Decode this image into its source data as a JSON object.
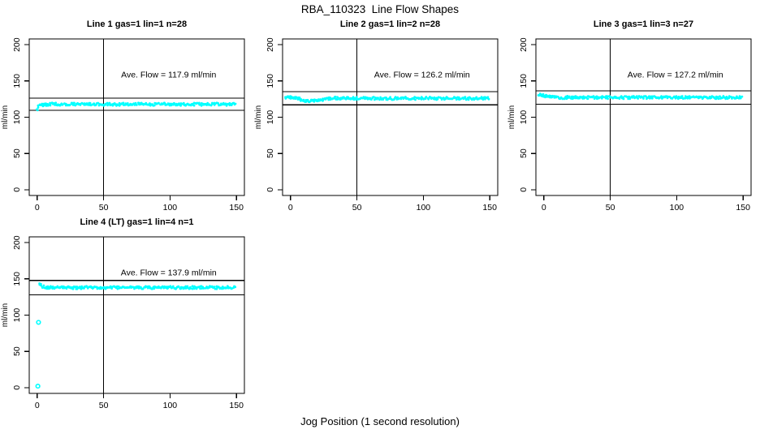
{
  "page": {
    "title": "RBA_110323  Line Flow Shapes",
    "xlabel_outer": "Jog Position (1 second resolution)",
    "background": "#ffffff"
  },
  "colors": {
    "points": "#00FFFF",
    "axis": "#000000",
    "text": "#000000"
  },
  "chart_data": [
    {
      "type": "scatter",
      "title": "Line 1 gas=1 lin=1 n=28",
      "ylabel": "ml/min",
      "xlim": [
        0,
        150
      ],
      "ylim": [
        0,
        200
      ],
      "xticks": [
        0,
        50,
        100,
        150
      ],
      "yticks": [
        0,
        50,
        100,
        150,
        200
      ],
      "vline_x": 50,
      "hlines": [
        109.4,
        126.4
      ],
      "ave_flow": 117.9,
      "annotation": {
        "text": "Ave. Flow =  117.9  ml/min",
        "x": 99,
        "y": 155
      },
      "band": [
        [
          0,
          111.5
        ],
        [
          1,
          114.5
        ],
        [
          2,
          116
        ],
        [
          3,
          116.8
        ],
        [
          5,
          117.3
        ],
        [
          8,
          117.8
        ],
        [
          11,
          118.3
        ],
        [
          14,
          118.4
        ],
        [
          17,
          118
        ],
        [
          20,
          117.8
        ],
        [
          24,
          118.2
        ],
        [
          28,
          118
        ],
        [
          32,
          117.7
        ],
        [
          36,
          118.1
        ],
        [
          40,
          117.9
        ],
        [
          45,
          118
        ],
        [
          50,
          117.7
        ],
        [
          55,
          118
        ],
        [
          60,
          117.8
        ],
        [
          65,
          118.1
        ],
        [
          70,
          117.7
        ],
        [
          75,
          117.9
        ],
        [
          80,
          118
        ],
        [
          85,
          117.7
        ],
        [
          90,
          117.9
        ],
        [
          95,
          118
        ],
        [
          100,
          117.8
        ],
        [
          105,
          118
        ],
        [
          110,
          117.7
        ],
        [
          115,
          117.9
        ],
        [
          120,
          118
        ],
        [
          125,
          117.8
        ],
        [
          130,
          117.6
        ],
        [
          135,
          117.9
        ],
        [
          140,
          118
        ],
        [
          145,
          117.7
        ],
        [
          150,
          117.8
        ]
      ],
      "outliers": []
    },
    {
      "type": "scatter",
      "title": "Line 2 gas=1 lin=2 n=28",
      "ylabel": "ml/min",
      "xlim": [
        0,
        150
      ],
      "ylim": [
        0,
        200
      ],
      "xticks": [
        0,
        50,
        100,
        150
      ],
      "yticks": [
        0,
        50,
        100,
        150,
        200
      ],
      "vline_x": 50,
      "hlines": [
        117.1,
        135.3
      ],
      "ave_flow": 126.2,
      "annotation": {
        "text": "Ave. Flow =  126.2  ml/min",
        "x": 99,
        "y": 155
      },
      "band": [
        [
          -4,
          127.2
        ],
        [
          -2,
          127.3
        ],
        [
          0,
          127.3
        ],
        [
          2,
          127.4
        ],
        [
          4,
          126.8
        ],
        [
          6,
          125.6
        ],
        [
          8,
          124.2
        ],
        [
          10,
          123.2
        ],
        [
          12,
          122.6
        ],
        [
          15,
          122.4
        ],
        [
          18,
          122.7
        ],
        [
          21,
          123.2
        ],
        [
          24,
          124
        ],
        [
          27,
          125
        ],
        [
          30,
          125.8
        ],
        [
          34,
          126.2
        ],
        [
          38,
          126.4
        ],
        [
          42,
          126.2
        ],
        [
          46,
          126
        ],
        [
          50,
          126.2
        ],
        [
          55,
          126
        ],
        [
          60,
          126.3
        ],
        [
          65,
          125.9
        ],
        [
          70,
          126.1
        ],
        [
          75,
          125.8
        ],
        [
          80,
          126.2
        ],
        [
          85,
          125.9
        ],
        [
          90,
          126.1
        ],
        [
          95,
          125.8
        ],
        [
          100,
          126
        ],
        [
          105,
          126.2
        ],
        [
          110,
          125.9
        ],
        [
          115,
          126.1
        ],
        [
          120,
          125.8
        ],
        [
          125,
          126
        ],
        [
          130,
          126.2
        ],
        [
          135,
          125.9
        ],
        [
          140,
          126
        ],
        [
          145,
          126.1
        ],
        [
          150,
          126
        ]
      ],
      "outliers": []
    },
    {
      "type": "scatter",
      "title": "Line 3 gas=1 lin=3 n=27",
      "ylabel": "ml/min",
      "xlim": [
        0,
        150
      ],
      "ylim": [
        0,
        200
      ],
      "xticks": [
        0,
        50,
        100,
        150
      ],
      "yticks": [
        0,
        50,
        100,
        150,
        200
      ],
      "vline_x": 50,
      "hlines": [
        118.0,
        136.4
      ],
      "ave_flow": 127.2,
      "annotation": {
        "text": "Ave. Flow =  127.2  ml/min",
        "x": 99,
        "y": 155
      },
      "band": [
        [
          -4,
          131
        ],
        [
          -2,
          130.4
        ],
        [
          0,
          129.8
        ],
        [
          2,
          129
        ],
        [
          4,
          128.3
        ],
        [
          6,
          127.8
        ],
        [
          10,
          127.3
        ],
        [
          14,
          127.2
        ],
        [
          18,
          127.4
        ],
        [
          22,
          127.1
        ],
        [
          26,
          127.3
        ],
        [
          30,
          127.2
        ],
        [
          35,
          127.4
        ],
        [
          40,
          127.1
        ],
        [
          45,
          127.3
        ],
        [
          50,
          127.2
        ],
        [
          55,
          127.4
        ],
        [
          60,
          127.1
        ],
        [
          65,
          127.3
        ],
        [
          70,
          127.2
        ],
        [
          75,
          127.4
        ],
        [
          80,
          127.1
        ],
        [
          85,
          127.2
        ],
        [
          90,
          127.3
        ],
        [
          95,
          127.1
        ],
        [
          100,
          127.3
        ],
        [
          105,
          127.2
        ],
        [
          110,
          127.4
        ],
        [
          115,
          127.1
        ],
        [
          120,
          127.2
        ],
        [
          125,
          127.3
        ],
        [
          130,
          127.1
        ],
        [
          135,
          127.3
        ],
        [
          140,
          127.2
        ],
        [
          145,
          127.3
        ],
        [
          150,
          127.2
        ]
      ],
      "outliers": []
    },
    {
      "type": "scatter",
      "title": "Line 4 (LT) gas=1 lin=4 n=1",
      "ylabel": "ml/min",
      "xlim": [
        0,
        150
      ],
      "ylim": [
        0,
        200
      ],
      "xticks": [
        0,
        50,
        100,
        150
      ],
      "yticks": [
        0,
        50,
        100,
        150,
        200
      ],
      "vline_x": 50,
      "hlines": [
        127.9,
        147.9
      ],
      "ave_flow": 137.9,
      "annotation": {
        "text": "Ave. Flow =  137.9  ml/min",
        "x": 99,
        "y": 155
      },
      "band": [
        [
          2,
          142
        ],
        [
          3,
          141
        ],
        [
          4,
          139.8
        ],
        [
          5,
          139
        ],
        [
          6,
          138.6
        ],
        [
          8,
          138.2
        ],
        [
          10,
          138
        ],
        [
          14,
          138.1
        ],
        [
          18,
          137.9
        ],
        [
          22,
          138
        ],
        [
          26,
          138.1
        ],
        [
          30,
          137.9
        ],
        [
          35,
          138
        ],
        [
          40,
          138.1
        ],
        [
          45,
          137.9
        ],
        [
          50,
          138
        ],
        [
          55,
          138.1
        ],
        [
          60,
          137.9
        ],
        [
          65,
          138
        ],
        [
          70,
          138.1
        ],
        [
          75,
          137.9
        ],
        [
          80,
          138
        ],
        [
          85,
          138.1
        ],
        [
          90,
          137.9
        ],
        [
          95,
          138
        ],
        [
          100,
          138.1
        ],
        [
          105,
          137.9
        ],
        [
          110,
          138
        ],
        [
          115,
          138.1
        ],
        [
          120,
          137.9
        ],
        [
          125,
          138
        ],
        [
          130,
          138.1
        ],
        [
          135,
          137.9
        ],
        [
          140,
          138
        ],
        [
          145,
          138.1
        ],
        [
          150,
          138
        ]
      ],
      "outliers": [
        [
          0.5,
          2
        ],
        [
          1,
          90
        ]
      ]
    }
  ]
}
